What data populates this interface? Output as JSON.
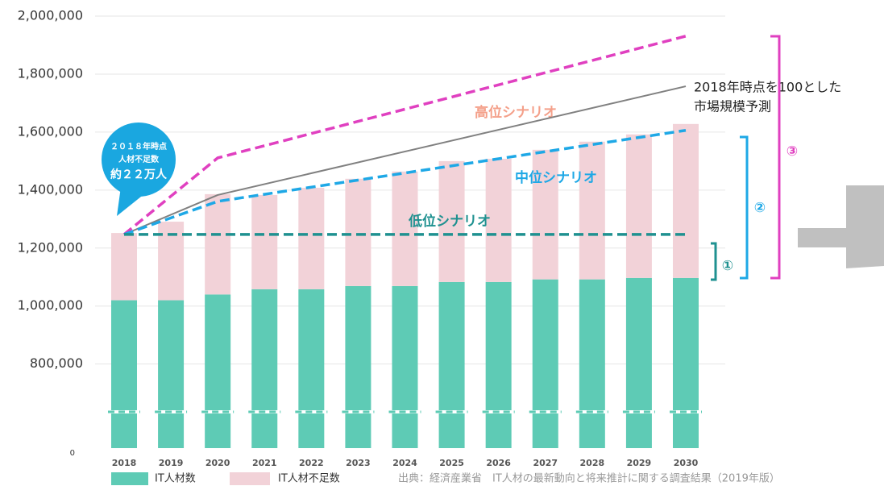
{
  "chart_data": {
    "type": "bar",
    "stacked": true,
    "categories": [
      "2018",
      "2019",
      "2020",
      "2021",
      "2022",
      "2023",
      "2024",
      "2025",
      "2026",
      "2027",
      "2028",
      "2029",
      "2030"
    ],
    "series": [
      {
        "name": "IT人材数",
        "color": "#5ecbb5",
        "values": [
          1020000,
          1020000,
          1040000,
          1058000,
          1058000,
          1069000,
          1069000,
          1083000,
          1083000,
          1092000,
          1092000,
          1097000,
          1097000
        ]
      },
      {
        "name": "IT人材不足数",
        "color": "#f2d2d8",
        "values": [
          232000,
          271000,
          346000,
          325000,
          350000,
          370000,
          395000,
          417000,
          425000,
          447000,
          475000,
          495000,
          531000
        ]
      }
    ],
    "lines": [
      {
        "name": [
          "高位シナリオ"
        ],
        "color": "#e040c0",
        "dash": true,
        "x": [
          "2018",
          "2020",
          "2030"
        ],
        "values": [
          1247000,
          1511000,
          1931000
        ],
        "label_color": "#f4a08a"
      },
      {
        "name": [
          "2018年時点を100とした",
          "市場規模予測"
        ],
        "color": "#808080",
        "dash": false,
        "x": [
          "2018",
          "2020",
          "2030"
        ],
        "values": [
          1247000,
          1383000,
          1758000
        ],
        "label_color": "#222222"
      },
      {
        "name": [
          "中位シナリオ"
        ],
        "color": "#1ea8e6",
        "dash": true,
        "x": [
          "2018",
          "2020",
          "2030"
        ],
        "values": [
          1247000,
          1361000,
          1606000
        ],
        "label_color": "#1ea8e6"
      },
      {
        "name": [
          "低位シナリオ"
        ],
        "color": "#1f9190",
        "dash": true,
        "x": [
          "2018",
          "2030"
        ],
        "values": [
          1247000,
          1247000
        ],
        "label_color": "#1f9190"
      }
    ],
    "ylim": [
      0,
      2000000
    ],
    "ybreak": [
      0,
      510000
    ],
    "yticks": [
      0,
      {
        "value": 800000,
        "label": "800,000"
      },
      {
        "value": 1000000,
        "label": "1,000,000"
      },
      {
        "value": 1200000,
        "label": "1,200,000"
      },
      {
        "value": 1400000,
        "label": "1,400,000"
      },
      {
        "value": 1600000,
        "label": "1,600,000"
      },
      {
        "value": 1800000,
        "label": "1,800,000"
      },
      {
        "value": 2000000,
        "label": "2,000,000"
      }
    ],
    "grid": true,
    "callout": [
      "２０１８年時点",
      "人材不足数",
      "約２２万人"
    ],
    "brackets": [
      {
        "text": "①",
        "color": "#1f9190"
      },
      {
        "text": "②",
        "color": "#1ea8e6"
      },
      {
        "text": "③",
        "color": "#e040c0"
      }
    ],
    "source": "出典：経済産業省　IT人材の最新動向と将来推計に関する調査結果（2019年版）"
  }
}
